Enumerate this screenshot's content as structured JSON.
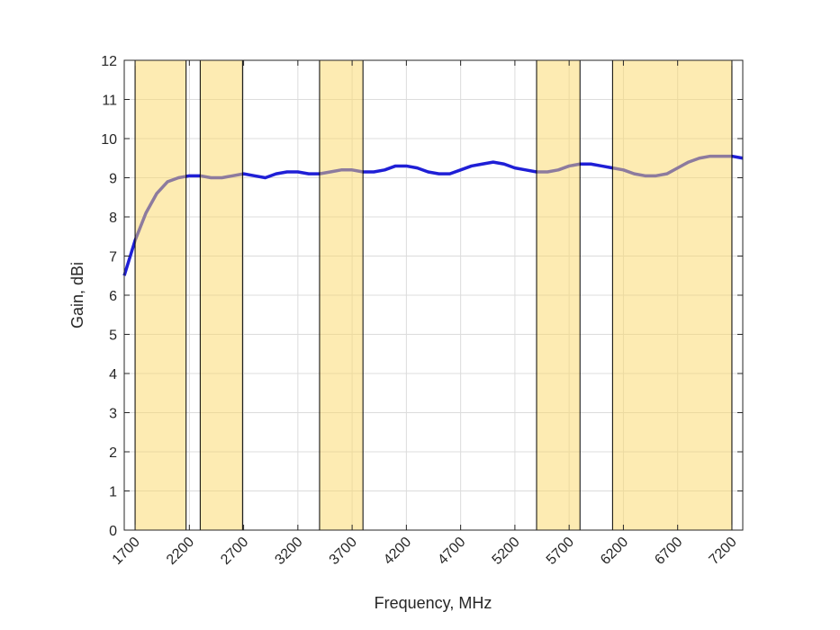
{
  "chart_data": {
    "type": "line",
    "xlabel": "Frequency, MHz",
    "ylabel": "Gain, dBi",
    "xlim": [
      1600,
      7300
    ],
    "ylim": [
      0,
      12
    ],
    "xticks": [
      1700,
      2200,
      2700,
      3200,
      3700,
      4200,
      4700,
      5200,
      5700,
      6200,
      6700,
      7200
    ],
    "yticks": [
      0,
      1,
      2,
      3,
      4,
      5,
      6,
      7,
      8,
      9,
      10,
      11,
      12
    ],
    "grid": true,
    "band_color": "#fbd766",
    "bands": [
      {
        "start": 1700,
        "end": 2170
      },
      {
        "start": 2300,
        "end": 2690
      },
      {
        "start": 3400,
        "end": 3800
      },
      {
        "start": 5400,
        "end": 5800
      },
      {
        "start": 6100,
        "end": 7200
      }
    ],
    "x": [
      1600,
      1700,
      1800,
      1900,
      2000,
      2100,
      2200,
      2300,
      2400,
      2500,
      2600,
      2700,
      2800,
      2900,
      3000,
      3100,
      3200,
      3300,
      3400,
      3500,
      3600,
      3700,
      3800,
      3900,
      4000,
      4100,
      4200,
      4300,
      4400,
      4500,
      4600,
      4700,
      4800,
      4900,
      5000,
      5100,
      5200,
      5300,
      5400,
      5500,
      5600,
      5700,
      5800,
      5900,
      6000,
      6100,
      6200,
      6300,
      6400,
      6500,
      6600,
      6700,
      6800,
      6900,
      7000,
      7100,
      7200,
      7300
    ],
    "series": [
      {
        "color": "#1f1fd6",
        "values": [
          6.5,
          7.4,
          8.1,
          8.6,
          8.9,
          9.0,
          9.05,
          9.05,
          9.0,
          9.0,
          9.05,
          9.1,
          9.05,
          9.0,
          9.1,
          9.15,
          9.15,
          9.1,
          9.1,
          9.15,
          9.2,
          9.2,
          9.15,
          9.15,
          9.2,
          9.3,
          9.3,
          9.25,
          9.15,
          9.1,
          9.1,
          9.2,
          9.3,
          9.35,
          9.4,
          9.35,
          9.25,
          9.2,
          9.15,
          9.15,
          9.2,
          9.3,
          9.35,
          9.35,
          9.3,
          9.25,
          9.2,
          9.1,
          9.05,
          9.05,
          9.1,
          9.25,
          9.4,
          9.5,
          9.55,
          9.55,
          9.55,
          9.5
        ]
      }
    ]
  }
}
